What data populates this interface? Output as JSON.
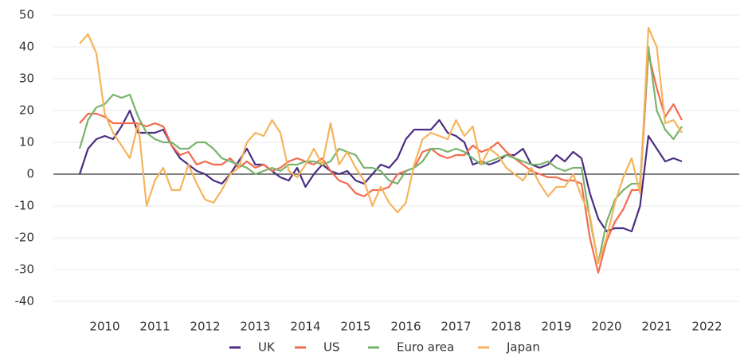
{
  "chart_data": {
    "type": "line",
    "categories": [
      null,
      null,
      null,
      "2010",
      null,
      null,
      null,
      null,
      null,
      "2011",
      null,
      null,
      null,
      null,
      null,
      "2012",
      null,
      null,
      null,
      null,
      null,
      "2013",
      null,
      null,
      null,
      null,
      null,
      "2014",
      null,
      null,
      null,
      null,
      null,
      "2015",
      null,
      null,
      null,
      null,
      null,
      "2016",
      null,
      null,
      null,
      null,
      null,
      "2017",
      null,
      null,
      null,
      null,
      null,
      "2018",
      null,
      null,
      null,
      null,
      null,
      "2019",
      null,
      null,
      null,
      null,
      null,
      "2020",
      null,
      null,
      null,
      null,
      null,
      "2021",
      null,
      null,
      null,
      null,
      null,
      "2022",
      null,
      null
    ],
    "series": [
      {
        "name": "UK",
        "color": "#4b2e83",
        "values": [
          0,
          8,
          11,
          12,
          11,
          15,
          20,
          13,
          13,
          13,
          14,
          9,
          5,
          3,
          1,
          0,
          -2,
          -3,
          0,
          4,
          8,
          3,
          3,
          1,
          -1,
          -2,
          2,
          -4,
          0,
          3,
          1,
          0,
          1,
          -2,
          -3,
          0,
          3,
          2,
          5,
          11,
          14,
          14,
          14,
          17,
          13,
          12,
          10,
          3,
          4,
          3,
          4,
          6,
          6,
          8,
          3,
          2,
          3,
          6,
          4,
          7,
          5,
          -6,
          -14,
          -18,
          -17,
          -17,
          -18,
          -10,
          12,
          8,
          4,
          5,
          4,
          null,
          null,
          null,
          null,
          null
        ]
      },
      {
        "name": "US",
        "color": "#f26b4e",
        "values": [
          16,
          19,
          19,
          18,
          16,
          16,
          16,
          16,
          15,
          16,
          15,
          9,
          6,
          7,
          3,
          4,
          3,
          3,
          5,
          2,
          4,
          2,
          3,
          1,
          2,
          4,
          5,
          4,
          3,
          5,
          1,
          -2,
          -3,
          -6,
          -7,
          -5,
          -5,
          -4,
          0,
          1,
          2,
          7,
          8,
          6,
          5,
          6,
          6,
          9,
          7,
          8,
          10,
          7,
          5,
          3,
          1,
          0,
          -1,
          -1,
          -2,
          -2,
          -3,
          -20,
          -31,
          -21,
          -15,
          -11,
          -5,
          -5,
          38,
          27,
          18,
          22,
          17,
          null,
          null,
          null,
          null,
          null
        ]
      },
      {
        "name": "Euro area",
        "color": "#77b36c",
        "values": [
          8,
          17,
          21,
          22,
          25,
          24,
          25,
          18,
          13,
          11,
          10,
          10,
          8,
          8,
          10,
          10,
          8,
          5,
          4,
          3,
          2,
          0,
          1,
          2,
          1,
          3,
          3,
          4,
          4,
          3,
          4,
          8,
          7,
          6,
          2,
          2,
          1,
          -2,
          -3,
          1,
          2,
          4,
          8,
          8,
          7,
          8,
          7,
          5,
          3,
          4,
          5,
          6,
          5,
          4,
          3,
          3,
          4,
          2,
          1,
          2,
          2,
          -14,
          -28,
          -15,
          -8,
          -5,
          -3,
          -3,
          40,
          20,
          14,
          11,
          15,
          null,
          null,
          null,
          null,
          null
        ]
      },
      {
        "name": "Japan",
        "color": "#f7b35b",
        "values": [
          41,
          44,
          38,
          19,
          13,
          9,
          5,
          16,
          -10,
          -2,
          2,
          -5,
          -5,
          3,
          -3,
          -8,
          -9,
          -5,
          0,
          2,
          10,
          13,
          12,
          17,
          13,
          1,
          -1,
          3,
          8,
          3,
          16,
          3,
          7,
          2,
          -2,
          -10,
          -4,
          -9,
          -12,
          -9,
          3,
          11,
          13,
          12,
          11,
          17,
          12,
          15,
          3,
          8,
          6,
          2,
          0,
          -2,
          2,
          -3,
          -7,
          -4,
          -4,
          0,
          -7,
          -13,
          -28,
          -20,
          -9,
          -1,
          5,
          -6,
          46,
          40,
          16,
          17,
          13,
          null,
          null,
          null,
          null,
          null
        ]
      }
    ],
    "ylim": [
      -44,
      53
    ],
    "yticks": [
      -40,
      -30,
      -20,
      -10,
      0,
      10,
      20,
      30,
      40,
      50
    ],
    "grid": true,
    "legend": "bottom"
  }
}
